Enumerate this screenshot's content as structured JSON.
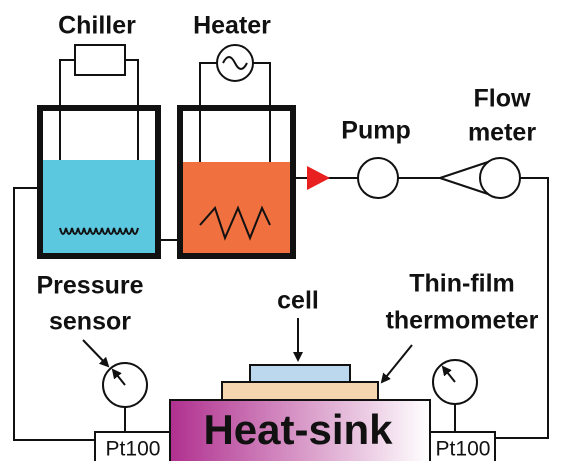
{
  "labels": {
    "chiller": "Chiller",
    "heater": "Heater",
    "pump": "Pump",
    "flow_meter": [
      "Flow",
      "meter"
    ],
    "pressure_sensor": [
      "Pressure",
      "sensor"
    ],
    "cell": "cell",
    "thin_film_thermometer": [
      "Thin-film",
      "thermometer"
    ],
    "heat_sink": "Heat-sink",
    "pt100": [
      "Pt100",
      "Pt100"
    ]
  }
}
